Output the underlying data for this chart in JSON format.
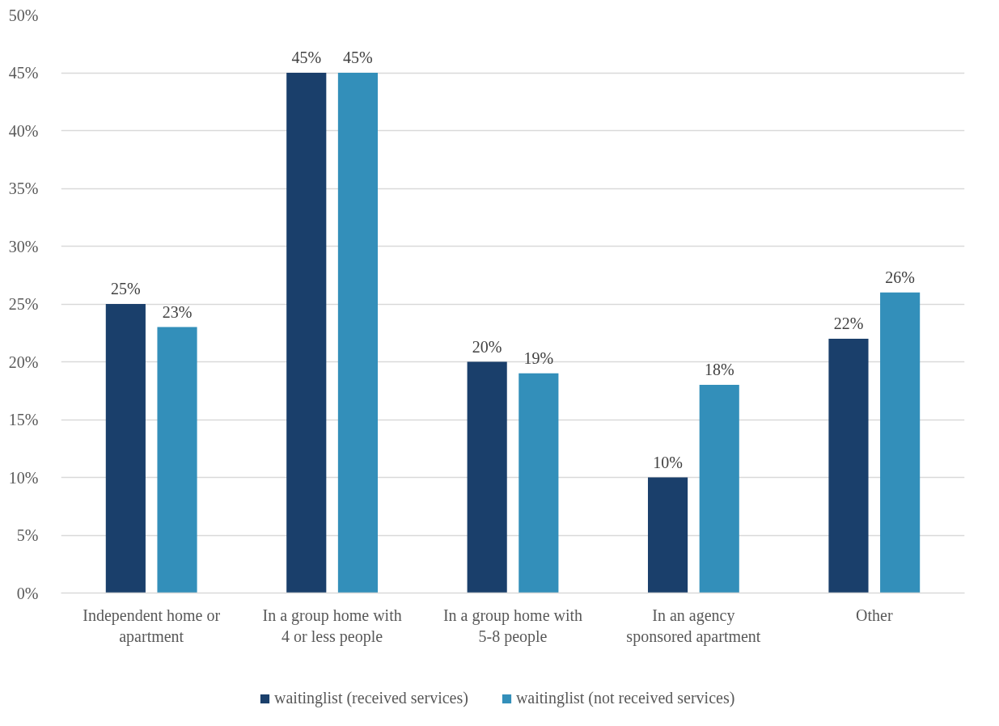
{
  "chart_data": {
    "type": "bar",
    "categories": [
      "Independent home or apartment",
      "In a group home with 4 or less people",
      "In a group home with 5-8 people",
      "In an agency sponsored apartment",
      "Other"
    ],
    "series": [
      {
        "name": "waitinglist (received services)",
        "color": "#1a3f6b",
        "values": [
          25,
          45,
          20,
          10,
          22
        ],
        "value_labels": [
          "25%",
          "45%",
          "20%",
          "10%",
          "22%"
        ]
      },
      {
        "name": "waitinglist (not received services)",
        "color": "#338fba",
        "values": [
          23,
          45,
          19,
          18,
          26
        ],
        "value_labels": [
          "23%",
          "45%",
          "19%",
          "18%",
          "26%"
        ]
      }
    ],
    "ylim": [
      0,
      50
    ],
    "yticks": [
      {
        "value": 0,
        "label": "0%"
      },
      {
        "value": 5,
        "label": "5%"
      },
      {
        "value": 10,
        "label": "10%"
      },
      {
        "value": 15,
        "label": "15%"
      },
      {
        "value": 20,
        "label": "20%"
      },
      {
        "value": 25,
        "label": "25%"
      },
      {
        "value": 30,
        "label": "30%"
      },
      {
        "value": 35,
        "label": "35%"
      },
      {
        "value": 40,
        "label": "40%"
      },
      {
        "value": 45,
        "label": "45%"
      },
      {
        "value": 50,
        "label": "50%"
      }
    ],
    "grid": "y",
    "legend": "bottom"
  }
}
